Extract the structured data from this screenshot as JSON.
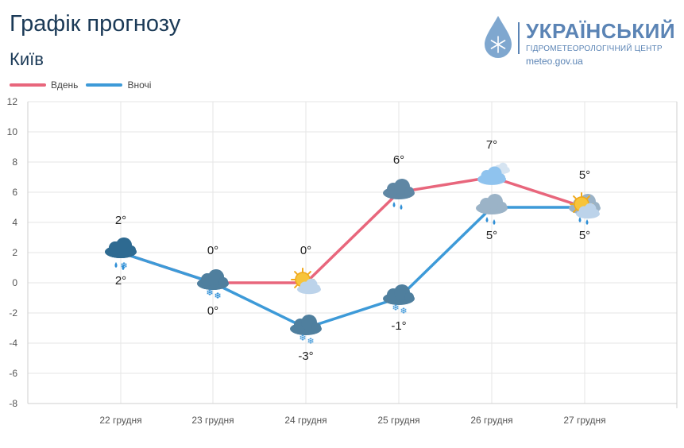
{
  "header": {
    "title": "Графік прогнозу",
    "city": "Київ"
  },
  "logo": {
    "name": "УКРАЇНСЬКИЙ",
    "subtitle": "ГІДРОМЕТЕОРОЛОГІЧНИЙ ЦЕНТР",
    "url": "meteo.gov.ua",
    "icon": "water-drop-snowflake-icon",
    "color": "#5b84b5"
  },
  "chart_data": {
    "type": "line",
    "categories": [
      "22 грудня",
      "23 грудня",
      "24 грудня",
      "25 грудня",
      "26 грудня",
      "27 грудня"
    ],
    "ylim": [
      -8,
      12
    ],
    "yticks": [
      12,
      10,
      8,
      6,
      4,
      2,
      0,
      -2,
      -4,
      -6,
      -8
    ],
    "grid": true,
    "legend_position": "top-left",
    "series": [
      {
        "name": "Вдень",
        "color": "#e8667c",
        "values": [
          2,
          0,
          0,
          6,
          7,
          5
        ],
        "labels": [
          "2°",
          "0°",
          "0°",
          "6°",
          "7°",
          "5°"
        ],
        "icons": [
          "rain-snow-cloud-icon",
          "snow-cloud-icon",
          "sun-cloud-icon",
          "rain-cloud-icon",
          "cloudy-icon",
          "sun-cloud-icon"
        ]
      },
      {
        "name": "Вночі",
        "color": "#3d9ad8",
        "values": [
          2,
          0,
          -3,
          -1,
          5,
          5
        ],
        "labels": [
          "2°",
          "0°",
          "-3°",
          "-1°",
          "5°",
          "5°"
        ],
        "icons": [
          "rain-snow-cloud-icon",
          "snow-cloud-icon",
          "snow-cloud-icon",
          "snow-cloud-icon",
          "rain-cloud-icon",
          "rain-cloud-icon"
        ]
      }
    ]
  }
}
